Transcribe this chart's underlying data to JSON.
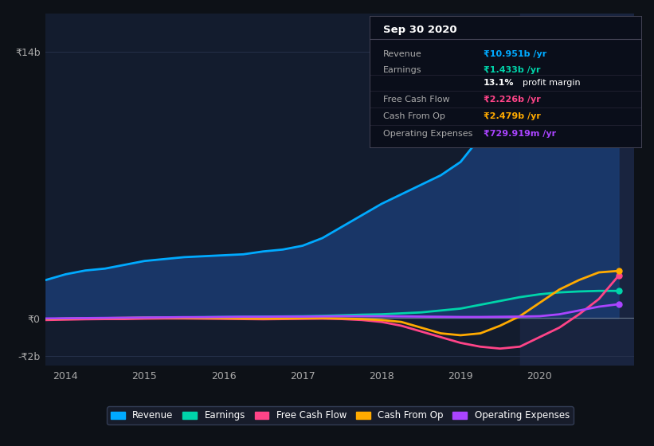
{
  "bg_color": "#0d1117",
  "plot_bg_color": "#131c2e",
  "highlight_bg": "#1a2540",
  "axis_label_color": "#aaaaaa",
  "grid_color": "#2a3550",
  "title_box_bg": "#0a0e1a",
  "years": [
    2013.75,
    2014.0,
    2014.25,
    2014.5,
    2014.75,
    2015.0,
    2015.25,
    2015.5,
    2015.75,
    2016.0,
    2016.25,
    2016.5,
    2016.75,
    2017.0,
    2017.25,
    2017.5,
    2017.75,
    2018.0,
    2018.25,
    2018.5,
    2018.75,
    2019.0,
    2019.25,
    2019.5,
    2019.75,
    2020.0,
    2020.25,
    2020.5,
    2020.75,
    2021.0
  ],
  "revenue": [
    2.0,
    2.3,
    2.5,
    2.6,
    2.8,
    3.0,
    3.1,
    3.2,
    3.25,
    3.3,
    3.35,
    3.5,
    3.6,
    3.8,
    4.2,
    4.8,
    5.4,
    6.0,
    6.5,
    7.0,
    7.5,
    8.2,
    9.5,
    11.0,
    12.5,
    13.8,
    14.2,
    13.5,
    12.0,
    10.95
  ],
  "earnings": [
    -0.05,
    -0.03,
    -0.02,
    -0.01,
    0.0,
    0.02,
    0.03,
    0.04,
    0.05,
    0.06,
    0.07,
    0.08,
    0.09,
    0.1,
    0.12,
    0.15,
    0.18,
    0.2,
    0.25,
    0.3,
    0.4,
    0.5,
    0.7,
    0.9,
    1.1,
    1.25,
    1.35,
    1.4,
    1.43,
    1.43
  ],
  "free_cash_flow": [
    -0.1,
    -0.08,
    -0.06,
    -0.05,
    -0.05,
    -0.03,
    -0.02,
    -0.02,
    -0.03,
    -0.04,
    -0.05,
    -0.06,
    -0.05,
    -0.04,
    -0.03,
    -0.05,
    -0.1,
    -0.2,
    -0.4,
    -0.7,
    -1.0,
    -1.3,
    -1.5,
    -1.6,
    -1.5,
    -1.0,
    -0.5,
    0.2,
    1.0,
    2.226
  ],
  "cash_from_op": [
    -0.05,
    -0.03,
    -0.01,
    0.0,
    0.01,
    0.02,
    0.02,
    0.01,
    0.0,
    -0.01,
    -0.02,
    -0.03,
    -0.02,
    -0.01,
    0.0,
    -0.02,
    -0.05,
    -0.1,
    -0.2,
    -0.5,
    -0.8,
    -0.9,
    -0.8,
    -0.4,
    0.1,
    0.8,
    1.5,
    2.0,
    2.4,
    2.479
  ],
  "operating_expenses": [
    -0.02,
    -0.01,
    0.0,
    0.01,
    0.02,
    0.03,
    0.04,
    0.05,
    0.05,
    0.06,
    0.07,
    0.07,
    0.08,
    0.08,
    0.09,
    0.1,
    0.1,
    0.1,
    0.09,
    0.08,
    0.07,
    0.06,
    0.06,
    0.07,
    0.08,
    0.1,
    0.2,
    0.4,
    0.6,
    0.73
  ],
  "highlight_start": 2019.75,
  "highlight_end": 2021.2,
  "xlim": [
    2013.75,
    2021.2
  ],
  "ylim": [
    -2.5,
    16.0
  ],
  "yticks": [
    -2,
    0,
    14
  ],
  "ytick_labels": [
    "-₹2b",
    "₹0",
    "₹14b"
  ],
  "xticks": [
    2014,
    2015,
    2016,
    2017,
    2018,
    2019,
    2020
  ],
  "revenue_color": "#00aaff",
  "revenue_fill": "#1a3a6e",
  "earnings_color": "#00d4aa",
  "fcf_color": "#ff4488",
  "cashop_color": "#ffaa00",
  "opex_color": "#aa44ff",
  "info_box": {
    "title": "Sep 30 2020",
    "revenue_label": "Revenue",
    "revenue_value": "₹10.951b /yr",
    "revenue_color": "#00aaff",
    "earnings_label": "Earnings",
    "earnings_value": "₹1.433b /yr",
    "earnings_color": "#00d4aa",
    "margin_text": "13.1% profit margin",
    "fcf_label": "Free Cash Flow",
    "fcf_value": "₹2.226b /yr",
    "fcf_color": "#ff4488",
    "cashop_label": "Cash From Op",
    "cashop_value": "₹2.479b /yr",
    "cashop_color": "#ffaa00",
    "opex_label": "Operating Expenses",
    "opex_value": "₹729.919m /yr",
    "opex_color": "#aa44ff"
  },
  "legend": [
    {
      "label": "Revenue",
      "color": "#00aaff"
    },
    {
      "label": "Earnings",
      "color": "#00d4aa"
    },
    {
      "label": "Free Cash Flow",
      "color": "#ff4488"
    },
    {
      "label": "Cash From Op",
      "color": "#ffaa00"
    },
    {
      "label": "Operating Expenses",
      "color": "#aa44ff"
    }
  ]
}
